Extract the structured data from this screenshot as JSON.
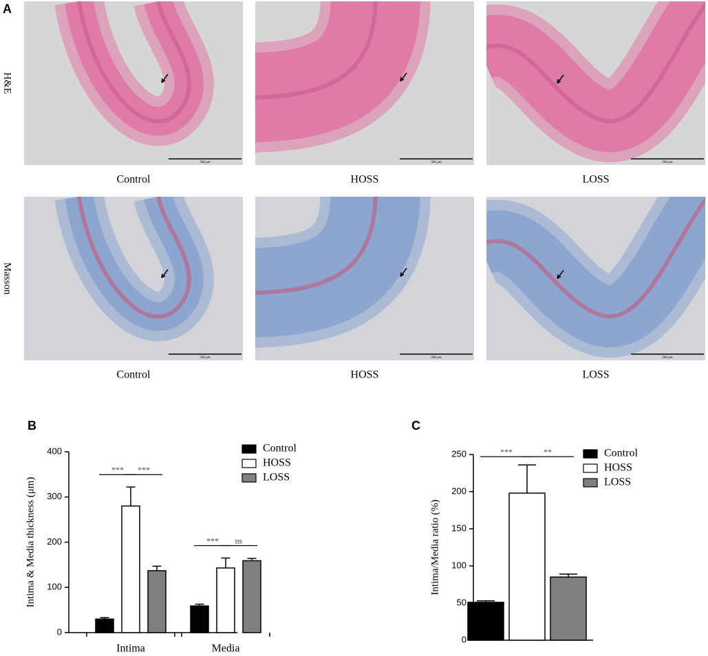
{
  "panel_a": {
    "label": "A",
    "rows": [
      {
        "label": "H&E",
        "images": [
          {
            "caption": "Control",
            "scale_bar": "500 μm"
          },
          {
            "caption": "HOSS",
            "scale_bar": "500 μm"
          },
          {
            "caption": "LOSS",
            "scale_bar": "500 μm"
          }
        ]
      },
      {
        "label": "Masson",
        "images": [
          {
            "caption": "Control",
            "scale_bar": "500 μm"
          },
          {
            "caption": "HOSS",
            "scale_bar": "500 μm"
          },
          {
            "caption": "LOSS",
            "scale_bar": "500 μm"
          }
        ]
      }
    ]
  },
  "chart_data": [
    {
      "type": "bar",
      "panel_label": "B",
      "y_label": "Intima & Media thickness (μm)",
      "categories": [
        "Intima",
        "Media"
      ],
      "series": [
        {
          "name": "Control",
          "color": "#000000",
          "values": [
            30,
            59
          ],
          "errors": [
            3,
            4
          ]
        },
        {
          "name": "HOSS",
          "color": "#ffffff",
          "values": [
            280,
            143
          ],
          "errors": [
            42,
            22
          ]
        },
        {
          "name": "LOSS",
          "color": "#808080",
          "values": [
            137,
            159
          ],
          "errors": [
            10,
            5
          ]
        }
      ],
      "ylim": [
        0,
        400
      ],
      "yticks": [
        0,
        100,
        200,
        300,
        400
      ],
      "annotations": [
        {
          "text": "***",
          "category": "Intima",
          "from": "Control",
          "to": "HOSS"
        },
        {
          "text": "***",
          "category": "Intima",
          "from": "HOSS",
          "to": "LOSS"
        },
        {
          "text": "***",
          "category": "Media",
          "from": "Control",
          "to": "HOSS"
        },
        {
          "text": "ns",
          "category": "Media",
          "from": "HOSS",
          "to": "LOSS"
        }
      ]
    },
    {
      "type": "bar",
      "panel_label": "C",
      "y_label": "Intima/Media ratio (%)",
      "series": [
        {
          "name": "Control",
          "color": "#000000",
          "values": [
            51
          ],
          "errors": [
            2
          ]
        },
        {
          "name": "HOSS",
          "color": "#ffffff",
          "values": [
            198
          ],
          "errors": [
            38
          ]
        },
        {
          "name": "LOSS",
          "color": "#808080",
          "values": [
            85
          ],
          "errors": [
            4
          ]
        }
      ],
      "ylim": [
        0,
        250
      ],
      "yticks": [
        0,
        50,
        100,
        150,
        200,
        250
      ],
      "annotations": [
        {
          "text": "***",
          "from": "Control",
          "to": "HOSS"
        },
        {
          "text": "**",
          "from": "HOSS",
          "to": "LOSS"
        }
      ]
    }
  ]
}
